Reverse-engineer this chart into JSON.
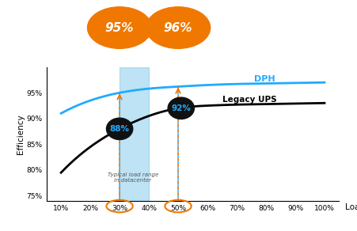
{
  "xlabel": "Load",
  "ylabel": "Efficiency",
  "xlim": [
    5,
    105
  ],
  "ylim": [
    74,
    100
  ],
  "yticks": [
    75,
    80,
    85,
    90,
    95
  ],
  "xticks": [
    10,
    20,
    30,
    40,
    50,
    60,
    70,
    80,
    90,
    100
  ],
  "xtick_labels": [
    "10%",
    "20%",
    "30%",
    "40%",
    "50%",
    "60%",
    "70%",
    "80%",
    "90%",
    "100%"
  ],
  "ytick_labels": [
    "75%",
    "80%",
    "85%",
    "90%",
    "95%"
  ],
  "dph_color": "#22aaff",
  "legacy_color": "#000000",
  "dph_label": "DPH",
  "legacy_label": "Legacy UPS",
  "shaded_color": "#88ccee",
  "orange_color": "#f07800",
  "annotation_bg": "#111111",
  "point_30_dph": 95.0,
  "point_50_dph": 96.2,
  "point_30_legacy": 88.0,
  "point_50_legacy": 92.0,
  "typical_load_text": "Typical load range\nin datacenter",
  "background_color": "#ffffff",
  "dph_x": [
    10,
    20,
    30,
    40,
    50,
    60,
    70,
    80,
    90,
    100
  ],
  "dph_y": [
    91.0,
    93.5,
    95.0,
    95.8,
    96.2,
    96.5,
    96.7,
    96.8,
    96.9,
    97.0
  ],
  "leg_x": [
    10,
    20,
    30,
    40,
    50,
    60,
    70,
    80,
    90,
    100
  ],
  "leg_y": [
    79.5,
    84.5,
    88.0,
    90.5,
    92.0,
    92.5,
    92.7,
    92.8,
    92.9,
    93.0
  ]
}
